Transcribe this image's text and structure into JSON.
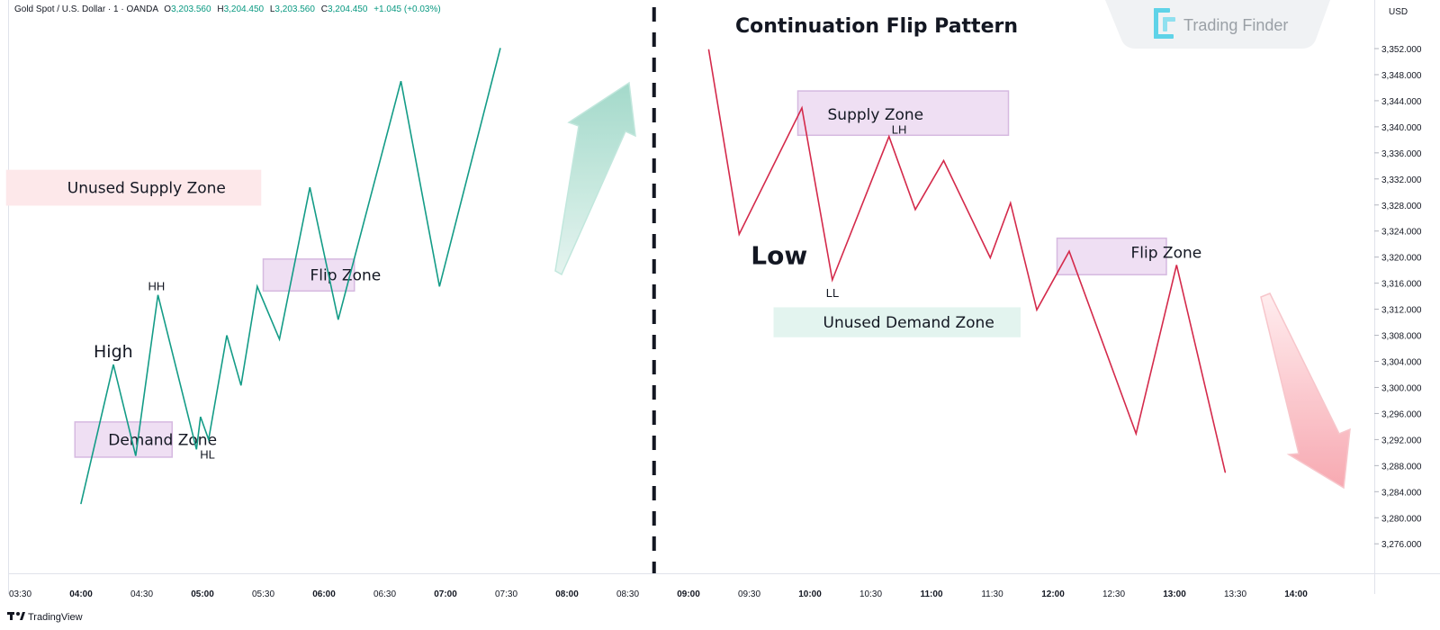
{
  "header": {
    "symbol": "Gold Spot / U.S. Dollar · 1 · OANDA",
    "open_key": "O",
    "open": "3,203.560",
    "high_key": "H",
    "high": "3,204.450",
    "low_key": "L",
    "low": "3,203.560",
    "close_key": "C",
    "close": "3,204.450",
    "change": "+1.045 (+0.03%)"
  },
  "brand": {
    "name": "Trading Finder"
  },
  "footer": {
    "logo": "TradingView"
  },
  "chart_data": {
    "type": "line",
    "title": "Continuation Flip Pattern",
    "currency": "USD",
    "ylim": [
      3272,
      3356
    ],
    "y_ticks": [
      "3,352.000",
      "3,348.000",
      "3,344.000",
      "3,340.000",
      "3,336.000",
      "3,332.000",
      "3,328.000",
      "3,324.000",
      "3,320.000",
      "3,316.000",
      "3,312.000",
      "3,308.000",
      "3,304.000",
      "3,300.000",
      "3,296.000",
      "3,292.000",
      "3,288.000",
      "3,284.000",
      "3,280.000",
      "3,276.000"
    ],
    "x_ticks": [
      {
        "label": "03:30",
        "t": 210,
        "major": false
      },
      {
        "label": "04:00",
        "t": 240,
        "major": true
      },
      {
        "label": "04:30",
        "t": 270,
        "major": false
      },
      {
        "label": "05:00",
        "t": 300,
        "major": true
      },
      {
        "label": "05:30",
        "t": 330,
        "major": false
      },
      {
        "label": "06:00",
        "t": 360,
        "major": true
      },
      {
        "label": "06:30",
        "t": 390,
        "major": false
      },
      {
        "label": "07:00",
        "t": 420,
        "major": true
      },
      {
        "label": "07:30",
        "t": 450,
        "major": false
      },
      {
        "label": "08:00",
        "t": 480,
        "major": true
      },
      {
        "label": "08:30",
        "t": 510,
        "major": false
      },
      {
        "label": "09:00",
        "t": 540,
        "major": true
      },
      {
        "label": "09:30",
        "t": 570,
        "major": false
      },
      {
        "label": "10:00",
        "t": 600,
        "major": true
      },
      {
        "label": "10:30",
        "t": 630,
        "major": false
      },
      {
        "label": "11:00",
        "t": 660,
        "major": true
      },
      {
        "label": "11:30",
        "t": 690,
        "major": false
      },
      {
        "label": "12:00",
        "t": 720,
        "major": true
      },
      {
        "label": "12:30",
        "t": 750,
        "major": false
      },
      {
        "label": "13:00",
        "t": 780,
        "major": true
      },
      {
        "label": "13:30",
        "t": 810,
        "major": false
      },
      {
        "label": "14:00",
        "t": 840,
        "major": true
      }
    ],
    "series": [
      {
        "color": "#149c87",
        "points": [
          [
            240,
            3282.2
          ],
          [
            256,
            3303.5
          ],
          [
            267,
            3289.5
          ],
          [
            278,
            3314.2
          ],
          [
            297,
            3290.5
          ],
          [
            299,
            3295.5
          ],
          [
            303,
            3292.0
          ],
          [
            312,
            3308.0
          ],
          [
            319,
            3300.3
          ],
          [
            327,
            3315.5
          ],
          [
            338,
            3307.4
          ],
          [
            353,
            3330.7
          ],
          [
            367,
            3310.4
          ],
          [
            398,
            3347.0
          ],
          [
            417,
            3315.5
          ],
          [
            447,
            3352.0
          ]
        ]
      },
      {
        "color": "#d42a4b",
        "points": [
          [
            550,
            3351.8
          ],
          [
            565,
            3323.5
          ],
          [
            596,
            3342.9
          ],
          [
            611,
            3316.5
          ],
          [
            639,
            3338.5
          ],
          [
            652,
            3327.3
          ],
          [
            666,
            3334.8
          ],
          [
            689,
            3319.9
          ],
          [
            699,
            3328.3
          ],
          [
            712,
            3311.9
          ],
          [
            728,
            3320.9
          ],
          [
            761,
            3292.9
          ],
          [
            781,
            3318.8
          ],
          [
            805,
            3287.0
          ]
        ]
      }
    ],
    "zones": [
      {
        "label": "Unused Supply Zone",
        "t0": 203,
        "t1": 329,
        "y0": 3327.9,
        "y1": 3333.4,
        "fill": "#fde8ea",
        "stroke": "none"
      },
      {
        "label": "Demand Zone",
        "t0": 237,
        "t1": 285,
        "y0": 3289.3,
        "y1": 3294.7,
        "fill": "#efdff3",
        "stroke": "#d6b9e0"
      },
      {
        "label": "Flip Zone",
        "t0": 330,
        "t1": 375,
        "y0": 3314.8,
        "y1": 3319.7,
        "fill": "#efdff3",
        "stroke": "#d6b9e0"
      },
      {
        "label": "Supply Zone",
        "t0": 594,
        "t1": 698,
        "y0": 3338.7,
        "y1": 3345.5,
        "fill": "#efdff3",
        "stroke": "#d6b9e0"
      },
      {
        "label": "Unused Demand Zone",
        "t0": 582,
        "t1": 704,
        "y0": 3307.7,
        "y1": 3312.3,
        "fill": "#e3f4ef",
        "stroke": "none"
      },
      {
        "label": "Flip Zone",
        "t0": 722,
        "t1": 776,
        "y0": 3317.3,
        "y1": 3322.9,
        "fill": "#efdff3",
        "stroke": "#d6b9e0"
      }
    ],
    "annotations": [
      {
        "text": "High",
        "t": 256,
        "y": 3303.5,
        "style": "big"
      },
      {
        "text": "HH",
        "t": 278,
        "y": 3314.2,
        "style": "small"
      },
      {
        "text": "HL",
        "t": 297,
        "y": 3290.5,
        "style": "small"
      },
      {
        "text": "Low",
        "t": 565,
        "y": 3323.5,
        "style": "huge"
      },
      {
        "text": "LL",
        "t": 611,
        "y": 3316.5,
        "style": "small"
      },
      {
        "text": "LH",
        "t": 639,
        "y": 3338.5,
        "style": "small"
      }
    ],
    "divider_t": 523
  }
}
